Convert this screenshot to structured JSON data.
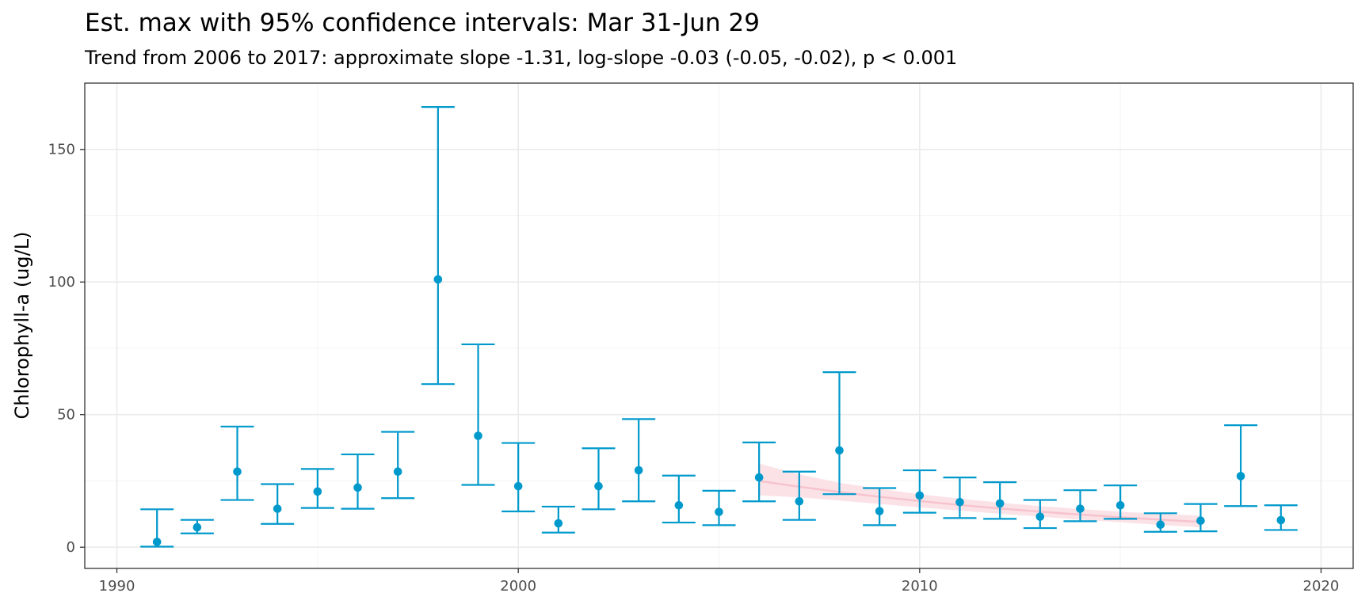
{
  "chart_data": {
    "type": "scatter",
    "title": "Est. max with 95% confidence intervals: Mar 31-Jun 29",
    "subtitle": "Trend from 2006 to 2017: approximate slope -1.31, log-slope -0.03 (-0.05, -0.02), p < 0.001",
    "xlabel": "",
    "ylabel": "Chlorophyll-a (ug/L)",
    "xlim": [
      1989.2,
      2020.8
    ],
    "ylim": [
      -8,
      175
    ],
    "x_ticks": [
      1990,
      2000,
      2010,
      2020
    ],
    "x_tick_labels": [
      "1990",
      "2000",
      "2010",
      "2020"
    ],
    "y_ticks": [
      0,
      50,
      100,
      150
    ],
    "y_tick_labels": [
      "0",
      "50",
      "100",
      "150"
    ],
    "x_minor": [
      1995,
      2005,
      2015
    ],
    "y_minor": [
      25,
      75,
      125
    ],
    "grid": true,
    "colors": {
      "points": "#0099cc",
      "trend_line": "#f7c3cd",
      "trend_band": "#fadde3"
    },
    "series": [
      {
        "name": "Estimated max",
        "x": [
          1991,
          1992,
          1993,
          1994,
          1995,
          1996,
          1997,
          1998,
          1999,
          2000,
          2001,
          2002,
          2003,
          2004,
          2005,
          2006,
          2007,
          2008,
          2009,
          2010,
          2011,
          2012,
          2013,
          2014,
          2015,
          2016,
          2017,
          2018,
          2019
        ],
        "y": [
          2.0,
          7.5,
          28.5,
          14.5,
          21.0,
          22.5,
          28.5,
          101.0,
          42.0,
          23.0,
          9.0,
          23.0,
          29.0,
          15.8,
          13.3,
          26.3,
          17.3,
          36.5,
          13.6,
          19.5,
          17.0,
          16.5,
          11.5,
          14.5,
          15.8,
          8.5,
          10.0,
          26.8,
          10.2
        ],
        "lower": [
          0.2,
          5.2,
          17.8,
          8.8,
          14.8,
          14.5,
          18.5,
          61.5,
          23.5,
          13.5,
          5.5,
          14.3,
          17.3,
          9.3,
          8.3,
          17.3,
          10.3,
          20.0,
          8.3,
          13.0,
          11.0,
          10.7,
          7.2,
          9.8,
          10.7,
          5.8,
          6.0,
          15.5,
          6.5
        ],
        "upper": [
          14.3,
          10.3,
          45.5,
          23.8,
          29.5,
          35.0,
          43.5,
          166.0,
          76.5,
          39.3,
          15.3,
          37.3,
          48.3,
          27.0,
          21.3,
          39.5,
          28.5,
          66.0,
          22.3,
          29.0,
          26.3,
          24.5,
          17.8,
          21.5,
          23.3,
          12.8,
          16.3,
          46.0,
          15.8
        ]
      },
      {
        "name": "Trend 2006-2017",
        "x": [
          2006,
          2007,
          2008,
          2009,
          2010,
          2011,
          2012,
          2013,
          2014,
          2015,
          2016,
          2017
        ],
        "y": [
          25.0,
          22.8,
          20.8,
          19.0,
          17.4,
          15.9,
          14.6,
          13.4,
          12.3,
          11.3,
          10.4,
          9.5
        ],
        "lower": [
          19.5,
          18.8,
          17.6,
          16.3,
          15.0,
          13.8,
          12.6,
          11.5,
          10.4,
          9.4,
          8.4,
          7.5
        ],
        "upper": [
          31.5,
          27.5,
          24.3,
          22.0,
          20.0,
          18.3,
          16.8,
          15.5,
          14.4,
          13.4,
          12.6,
          11.9
        ]
      }
    ]
  }
}
